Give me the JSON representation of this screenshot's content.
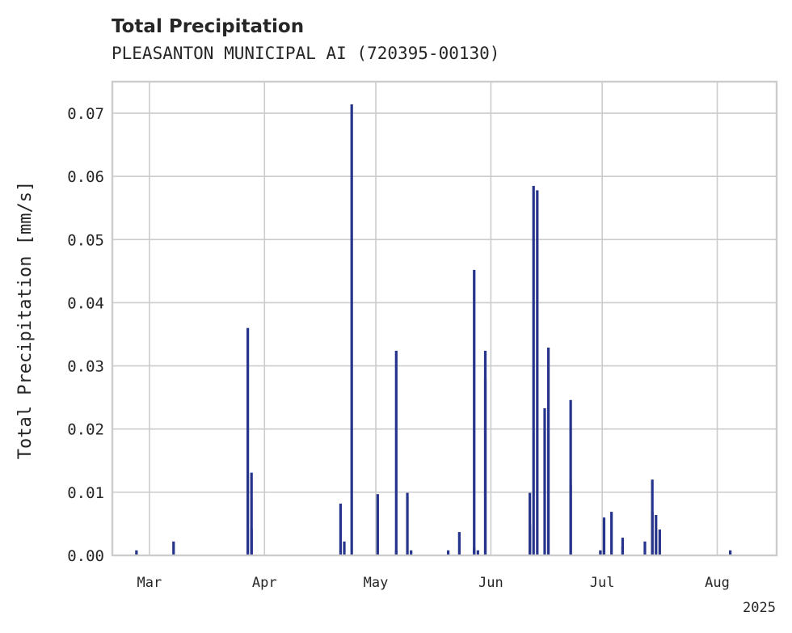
{
  "chart_data": {
    "type": "bar",
    "title": "Total Precipitation",
    "subtitle": "PLEASANTON MUNICIPAL AI (720395-00130)",
    "ylabel": "Total Precipitation [mm/s]",
    "xlabel": "",
    "year_label": "2025",
    "ylim": [
      0,
      0.075
    ],
    "xlim": [
      "2025-02-19",
      "2025-08-17"
    ],
    "yticks": [
      "0.00",
      "0.01",
      "0.02",
      "0.03",
      "0.04",
      "0.05",
      "0.06",
      "0.07"
    ],
    "xticks": [
      {
        "label": "Mar",
        "date": "2025-03-01"
      },
      {
        "label": "Apr",
        "date": "2025-04-01"
      },
      {
        "label": "May",
        "date": "2025-05-01"
      },
      {
        "label": "Jun",
        "date": "2025-06-01"
      },
      {
        "label": "Jul",
        "date": "2025-07-01"
      },
      {
        "label": "Aug",
        "date": "2025-08-01"
      }
    ],
    "grid": true,
    "color": "#27348b",
    "series": [
      {
        "points": [
          {
            "date": "2025-02-25",
            "value": 0.0008
          },
          {
            "date": "2025-03-07",
            "value": 0.0022
          },
          {
            "date": "2025-03-27",
            "value": 0.036
          },
          {
            "date": "2025-03-28",
            "value": 0.0131
          },
          {
            "date": "2025-03-28",
            "value": 0.0042
          },
          {
            "date": "2025-04-21",
            "value": 0.0082
          },
          {
            "date": "2025-04-22",
            "value": 0.0022
          },
          {
            "date": "2025-04-24",
            "value": 0.0714
          },
          {
            "date": "2025-05-01",
            "value": 0.0097
          },
          {
            "date": "2025-05-06",
            "value": 0.0324
          },
          {
            "date": "2025-05-06",
            "value": 0.0008
          },
          {
            "date": "2025-05-09",
            "value": 0.0099
          },
          {
            "date": "2025-05-10",
            "value": 0.0008
          },
          {
            "date": "2025-05-20",
            "value": 0.0008
          },
          {
            "date": "2025-05-23",
            "value": 0.0037
          },
          {
            "date": "2025-05-27",
            "value": 0.0452
          },
          {
            "date": "2025-05-27",
            "value": 0.0012
          },
          {
            "date": "2025-05-28",
            "value": 0.0008
          },
          {
            "date": "2025-05-30",
            "value": 0.0324
          },
          {
            "date": "2025-05-30",
            "value": 0.028
          },
          {
            "date": "2025-06-11",
            "value": 0.0099
          },
          {
            "date": "2025-06-11",
            "value": 0.0049
          },
          {
            "date": "2025-06-12",
            "value": 0.0585
          },
          {
            "date": "2025-06-13",
            "value": 0.0578
          },
          {
            "date": "2025-06-15",
            "value": 0.0233
          },
          {
            "date": "2025-06-16",
            "value": 0.0329
          },
          {
            "date": "2025-06-22",
            "value": 0.0112
          },
          {
            "date": "2025-06-22",
            "value": 0.0246
          },
          {
            "date": "2025-06-30",
            "value": 0.0008
          },
          {
            "date": "2025-07-01",
            "value": 0.006
          },
          {
            "date": "2025-07-03",
            "value": 0.0069
          },
          {
            "date": "2025-07-06",
            "value": 0.0028
          },
          {
            "date": "2025-07-06",
            "value": 0.0014
          },
          {
            "date": "2025-07-12",
            "value": 0.0022
          },
          {
            "date": "2025-07-14",
            "value": 0.0069
          },
          {
            "date": "2025-07-14",
            "value": 0.012
          },
          {
            "date": "2025-07-15",
            "value": 0.0064
          },
          {
            "date": "2025-07-16",
            "value": 0.0041
          },
          {
            "date": "2025-08-04",
            "value": 0.0008
          }
        ]
      }
    ]
  }
}
